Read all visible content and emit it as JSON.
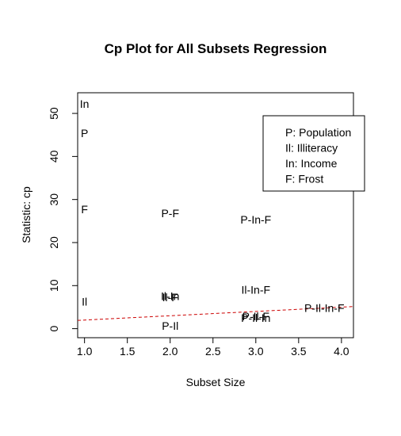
{
  "chart_data": {
    "type": "scatter",
    "title": "Cp Plot for All Subsets Regression",
    "xlabel": "Subset Size",
    "ylabel": "Statistic: cp",
    "xlim": [
      0.92,
      4.14
    ],
    "ylim": [
      -2.1,
      54.8
    ],
    "x_ticks": [
      1.0,
      1.5,
      2.0,
      2.5,
      3.0,
      3.5,
      4.0
    ],
    "x_tick_labels": [
      "1.0",
      "1.5",
      "2.0",
      "2.5",
      "3.0",
      "3.5",
      "4.0"
    ],
    "y_ticks": [
      0,
      10,
      20,
      30,
      40,
      50
    ],
    "y_tick_labels": [
      "0",
      "10",
      "20",
      "30",
      "40",
      "50"
    ],
    "points": [
      {
        "label": "In",
        "x": 1,
        "y": 52.2
      },
      {
        "label": "P",
        "x": 1,
        "y": 45.4
      },
      {
        "label": "F",
        "x": 1,
        "y": 27.7
      },
      {
        "label": "Il",
        "x": 1,
        "y": 6.3
      },
      {
        "label": "P-F",
        "x": 2,
        "y": 26.8
      },
      {
        "label": "Il-In",
        "x": 2,
        "y": 7.6
      },
      {
        "label": "Il-F",
        "x": 2,
        "y": 7.3
      },
      {
        "label": "P-Il",
        "x": 2,
        "y": 0.7
      },
      {
        "label": "P-In-F",
        "x": 3,
        "y": 25.3
      },
      {
        "label": "Il-In-F",
        "x": 3,
        "y": 9.0
      },
      {
        "label": "P-Il-In",
        "x": 3,
        "y": 2.5
      },
      {
        "label": "P-Il-F",
        "x": 3,
        "y": 2.9
      },
      {
        "label": "P-Il-In-F",
        "x": 3.8,
        "y": 4.8
      }
    ],
    "reference_line": {
      "description": "Cp = p",
      "x1": 0.92,
      "y1": 1.92,
      "x2": 4.14,
      "y2": 5.14,
      "color": "#cc0000",
      "style": "dashed"
    },
    "legend": {
      "placement": "top-right",
      "entries": [
        "P: Population",
        "Il: Illiteracy",
        "In: Income",
        "F: Frost"
      ]
    },
    "grid": false
  }
}
